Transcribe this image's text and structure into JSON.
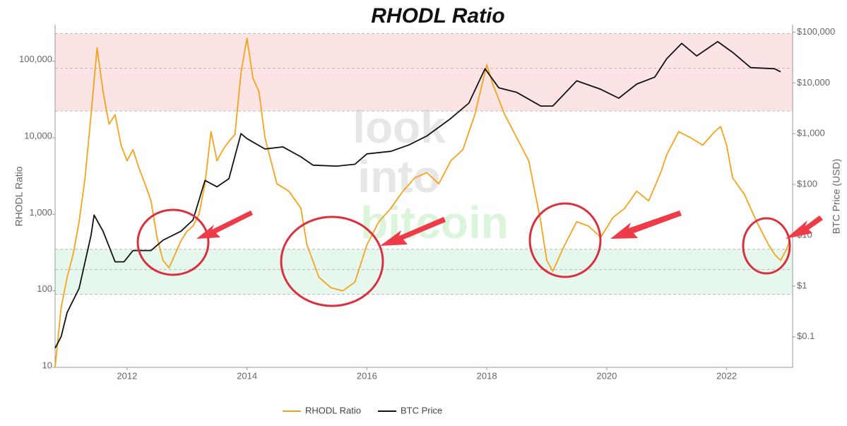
{
  "chart_data": {
    "type": "line",
    "title": "RHODL Ratio",
    "watermark": [
      "look",
      "into",
      "bitcoin"
    ],
    "y_label": "RHODL Ratio",
    "y2_label": "BTC Price (USD)",
    "log_y": true,
    "log_y2": true,
    "legend": "bottom",
    "xlim": [
      2010.8,
      2023.1
    ],
    "xticks": [
      2012,
      2014,
      2016,
      2018,
      2020,
      2022
    ],
    "ylim": [
      10,
      300000
    ],
    "yticks": [
      10,
      100,
      {
        "value": 1000,
        "label": "1,000"
      },
      {
        "value": 10000,
        "label": "10,000"
      },
      {
        "value": 100000,
        "label": "100,000"
      }
    ],
    "y2lim": [
      0.025,
      140000
    ],
    "y2ticks": [
      {
        "value": 0.1,
        "label": "$0.1"
      },
      {
        "value": 1,
        "label": "$1"
      },
      {
        "value": 10,
        "label": "$10"
      },
      {
        "value": 100,
        "label": "$100"
      },
      {
        "value": 1000,
        "label": "$1,000"
      },
      {
        "value": 10000,
        "label": "$10,000"
      },
      {
        "value": 100000,
        "label": "$100,000"
      }
    ],
    "bands": [
      {
        "from": 22400,
        "to": 230000,
        "color": "#fde4e4"
      },
      {
        "from": 90,
        "to": 350,
        "color": "#e6f7ee"
      }
    ],
    "band_lines": [
      230000,
      81000,
      22400,
      350,
      190,
      90
    ],
    "series": [
      {
        "name": "RHODL Ratio",
        "color": "#f5a31a",
        "axis": "y",
        "x": [
          2010.8,
          2010.9,
          2011.0,
          2011.1,
          2011.2,
          2011.3,
          2011.4,
          2011.5,
          2011.6,
          2011.7,
          2011.8,
          2011.9,
          2012.0,
          2012.1,
          2012.2,
          2012.3,
          2012.4,
          2012.5,
          2012.6,
          2012.7,
          2012.8,
          2012.9,
          2013.0,
          2013.1,
          2013.2,
          2013.3,
          2013.4,
          2013.5,
          2013.6,
          2013.7,
          2013.8,
          2013.9,
          2014.0,
          2014.1,
          2014.2,
          2014.3,
          2014.5,
          2014.7,
          2014.9,
          2015.0,
          2015.2,
          2015.4,
          2015.6,
          2015.8,
          2016.0,
          2016.2,
          2016.4,
          2016.6,
          2016.8,
          2017.0,
          2017.2,
          2017.4,
          2017.6,
          2017.8,
          2018.0,
          2018.1,
          2018.3,
          2018.5,
          2018.7,
          2018.9,
          2019.0,
          2019.1,
          2019.3,
          2019.5,
          2019.7,
          2019.9,
          2020.1,
          2020.3,
          2020.5,
          2020.7,
          2020.9,
          2021.0,
          2021.2,
          2021.4,
          2021.6,
          2021.8,
          2021.9,
          2022.0,
          2022.1,
          2022.3,
          2022.5,
          2022.7,
          2022.8,
          2022.9,
          2023.0,
          2023.05
        ],
        "values": [
          10,
          60,
          150,
          300,
          800,
          3000,
          20000,
          150000,
          40000,
          15000,
          20000,
          8000,
          5000,
          7000,
          4000,
          2500,
          1500,
          500,
          250,
          200,
          300,
          450,
          600,
          700,
          1000,
          2500,
          12000,
          5000,
          7000,
          9000,
          11000,
          70000,
          200000,
          60000,
          40000,
          10000,
          2500,
          2000,
          1200,
          400,
          150,
          110,
          100,
          130,
          400,
          800,
          1200,
          2000,
          3000,
          3500,
          2500,
          5000,
          7000,
          20000,
          90000,
          50000,
          20000,
          10000,
          5000,
          800,
          250,
          180,
          400,
          800,
          700,
          500,
          900,
          1200,
          2000,
          1500,
          3500,
          6000,
          12000,
          10000,
          8000,
          12000,
          14000,
          8000,
          3000,
          1800,
          800,
          400,
          300,
          250,
          350,
          450
        ]
      },
      {
        "name": "BTC Price",
        "color": "#111111",
        "axis": "y2",
        "x": [
          2010.8,
          2010.9,
          2011.0,
          2011.2,
          2011.4,
          2011.45,
          2011.6,
          2011.8,
          2011.95,
          2012.1,
          2012.4,
          2012.6,
          2012.9,
          2013.1,
          2013.3,
          2013.5,
          2013.7,
          2013.9,
          2014.0,
          2014.3,
          2014.6,
          2014.9,
          2015.1,
          2015.5,
          2015.8,
          2016.0,
          2016.4,
          2016.7,
          2017.0,
          2017.4,
          2017.7,
          2017.97,
          2018.2,
          2018.5,
          2018.9,
          2019.1,
          2019.5,
          2019.9,
          2020.2,
          2020.5,
          2020.8,
          2021.0,
          2021.25,
          2021.5,
          2021.85,
          2022.1,
          2022.4,
          2022.8,
          2022.9
        ],
        "values": [
          0.06,
          0.1,
          0.3,
          0.9,
          10,
          25,
          12,
          3,
          3,
          5,
          5,
          8,
          12,
          20,
          120,
          90,
          130,
          1000,
          800,
          500,
          550,
          350,
          240,
          230,
          250,
          400,
          450,
          600,
          900,
          2000,
          4000,
          19000,
          8000,
          6500,
          3500,
          3500,
          11000,
          7500,
          5000,
          9500,
          13000,
          30000,
          60000,
          34000,
          65000,
          40000,
          20000,
          19000,
          16500
        ]
      }
    ]
  }
}
